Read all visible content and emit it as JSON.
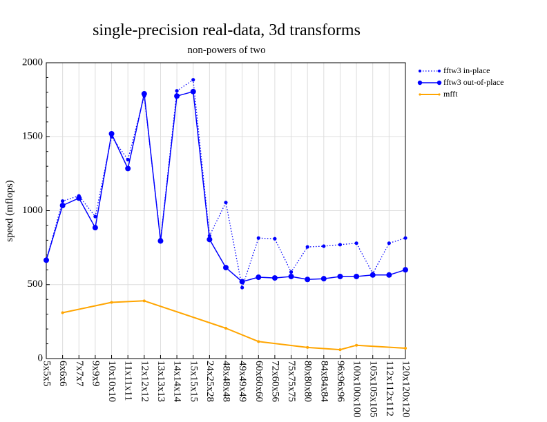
{
  "chart_data": {
    "type": "line",
    "title": "single-precision real-data, 3d transforms",
    "subtitle": "non-powers of two",
    "xlabel": "",
    "ylabel": "speed (mflops)",
    "ylim": [
      0,
      2000
    ],
    "yticks": [
      0,
      500,
      1000,
      1500,
      2000
    ],
    "grid": true,
    "legend_position": "top-right",
    "categories": [
      "5x5x5",
      "6x6x6",
      "7x7x7",
      "9x9x9",
      "10x10x10",
      "11x11x11",
      "12x12x12",
      "13x13x13",
      "14x14x14",
      "15x15x15",
      "24x25x28",
      "48x48x48",
      "49x49x49",
      "60x60x60",
      "72x60x56",
      "75x75x75",
      "80x80x80",
      "84x84x84",
      "96x96x96",
      "100x100x100",
      "105x105x105",
      "112x112x112",
      "120x120x120"
    ],
    "series": [
      {
        "name": "fftw3 in-place",
        "color": "#0000ff",
        "style": "dotted",
        "marker": "small-dot",
        "values": [
          665,
          1065,
          1100,
          960,
          1500,
          1345,
          1775,
          805,
          1810,
          1885,
          830,
          1055,
          480,
          815,
          810,
          585,
          755,
          760,
          770,
          780,
          575,
          780,
          815
        ]
      },
      {
        "name": "fftw3 out-of-place",
        "color": "#0000ff",
        "style": "solid",
        "marker": "large-dot",
        "values": [
          665,
          1035,
          1085,
          885,
          1520,
          1285,
          1790,
          795,
          1775,
          1805,
          805,
          615,
          520,
          550,
          545,
          555,
          535,
          540,
          555,
          555,
          565,
          565,
          600
        ]
      },
      {
        "name": "mfft",
        "color": "#ffa500",
        "style": "solid",
        "marker": "tiny-dot",
        "values": [
          null,
          310,
          null,
          null,
          380,
          null,
          390,
          null,
          null,
          null,
          null,
          205,
          null,
          115,
          null,
          null,
          75,
          null,
          60,
          90,
          null,
          null,
          70
        ]
      }
    ]
  }
}
